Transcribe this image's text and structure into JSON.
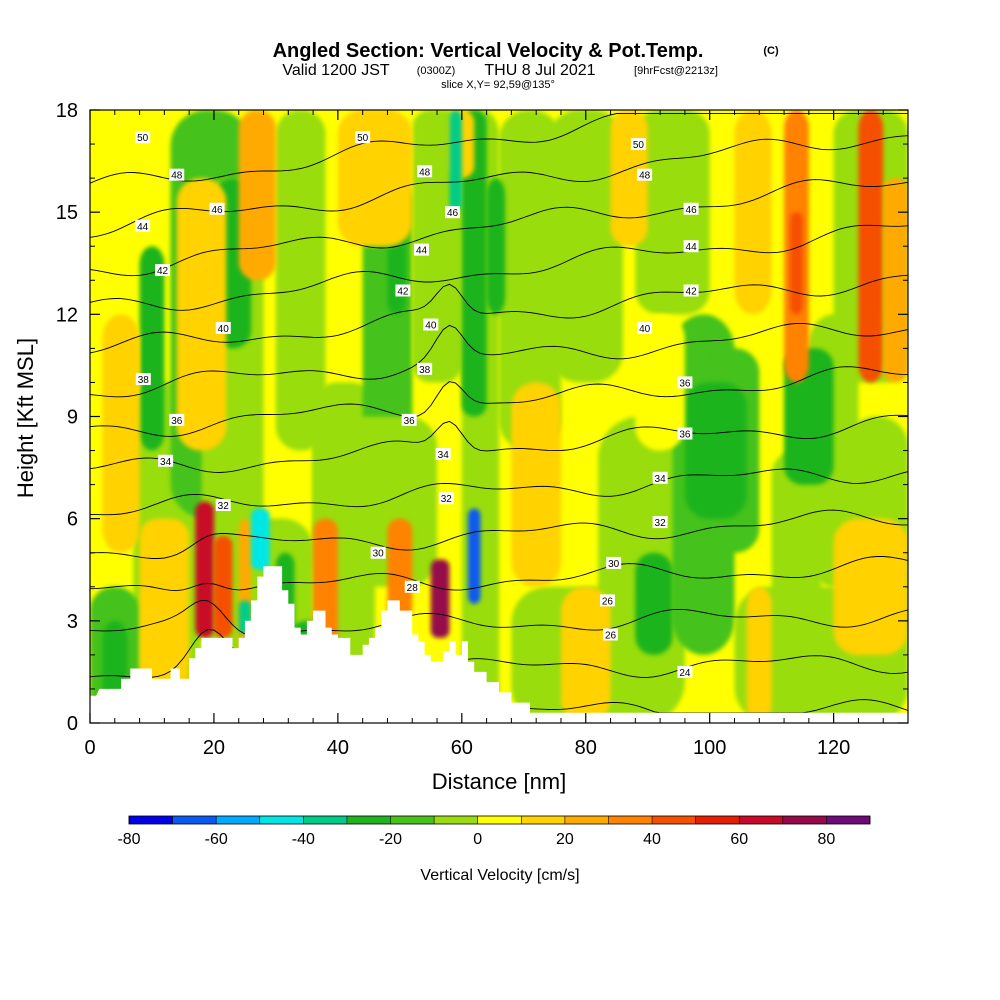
{
  "chart_data": {
    "type": "heatmap",
    "title": "Angled Section: Vertical Velocity & Pot.Temp.",
    "title_unit": "(C)",
    "subtitle_main": "Valid 1200 JST",
    "subtitle_utc": "(0300Z)",
    "subtitle_date": "THU 8 Jul 2021",
    "subtitle_fcst": "[9hrFcst@2213z]",
    "slice_label": "slice X,Y= 92,59@135°",
    "xlabel": "Distance [nm]",
    "ylabel": "Height [Kft MSL]",
    "xlim": [
      0,
      132
    ],
    "ylim": [
      0,
      18
    ],
    "x_ticks": [
      0,
      20,
      40,
      60,
      80,
      100,
      120
    ],
    "y_ticks": [
      0,
      3,
      6,
      9,
      12,
      15,
      18
    ],
    "x_tick_labels": [
      "0",
      "20",
      "40",
      "60",
      "80",
      "100",
      "120"
    ],
    "y_tick_labels": [
      "0",
      "3",
      "6",
      "9",
      "12",
      "15",
      "18"
    ],
    "colorbar": {
      "label": "Vertical Velocity [cm/s]",
      "range": [
        -80,
        90
      ],
      "bin_width": 10,
      "tick_values": [
        -80,
        -60,
        -40,
        -20,
        0,
        20,
        40,
        60,
        80
      ],
      "tick_labels": [
        "-80",
        "-60",
        "-40",
        "-20",
        "0",
        "20",
        "40",
        "60",
        "80"
      ],
      "colors": [
        "#0000e6",
        "#0a5af0",
        "#00aaff",
        "#00e6e6",
        "#00cc88",
        "#1fb41f",
        "#45c21a",
        "#99dd11",
        "#ffff00",
        "#ffd200",
        "#ffaa00",
        "#ff8200",
        "#f55000",
        "#e61e00",
        "#c80a28",
        "#960a4b",
        "#6e0a78"
      ]
    },
    "contours": {
      "field": "Potential Temperature (C)",
      "levels": [
        24,
        26,
        28,
        30,
        32,
        34,
        36,
        38,
        40,
        42,
        44,
        46,
        48,
        50
      ],
      "labels": [
        {
          "text": "50",
          "x": 8.5,
          "y": 17.2
        },
        {
          "text": "48",
          "x": 14,
          "y": 16.1
        },
        {
          "text": "46",
          "x": 20.5,
          "y": 15.1
        },
        {
          "text": "44",
          "x": 8.5,
          "y": 14.6
        },
        {
          "text": "42",
          "x": 11.7,
          "y": 13.3
        },
        {
          "text": "40",
          "x": 21.5,
          "y": 11.6
        },
        {
          "text": "38",
          "x": 8.6,
          "y": 10.1
        },
        {
          "text": "36",
          "x": 14,
          "y": 8.9
        },
        {
          "text": "34",
          "x": 12.2,
          "y": 7.7
        },
        {
          "text": "32",
          "x": 21.5,
          "y": 6.4
        },
        {
          "text": "50",
          "x": 44,
          "y": 17.2
        },
        {
          "text": "48",
          "x": 54,
          "y": 16.2
        },
        {
          "text": "46",
          "x": 58.5,
          "y": 15
        },
        {
          "text": "44",
          "x": 53.5,
          "y": 13.9
        },
        {
          "text": "42",
          "x": 50.5,
          "y": 12.7
        },
        {
          "text": "40",
          "x": 55,
          "y": 11.7
        },
        {
          "text": "38",
          "x": 54,
          "y": 10.4
        },
        {
          "text": "36",
          "x": 51.5,
          "y": 8.9
        },
        {
          "text": "34",
          "x": 57,
          "y": 7.9
        },
        {
          "text": "32",
          "x": 57.5,
          "y": 6.6
        },
        {
          "text": "30",
          "x": 46.5,
          "y": 5
        },
        {
          "text": "28",
          "x": 52,
          "y": 4
        },
        {
          "text": "50",
          "x": 88.5,
          "y": 17
        },
        {
          "text": "48",
          "x": 89.5,
          "y": 16.1
        },
        {
          "text": "46",
          "x": 97,
          "y": 15.1
        },
        {
          "text": "44",
          "x": 97,
          "y": 14
        },
        {
          "text": "42",
          "x": 97,
          "y": 12.7
        },
        {
          "text": "40",
          "x": 89.5,
          "y": 11.6
        },
        {
          "text": "36",
          "x": 96,
          "y": 10
        },
        {
          "text": "36",
          "x": 96,
          "y": 8.5
        },
        {
          "text": "34",
          "x": 92,
          "y": 7.2
        },
        {
          "text": "32",
          "x": 92,
          "y": 5.9
        },
        {
          "text": "30",
          "x": 84.5,
          "y": 4.7
        },
        {
          "text": "26",
          "x": 83.5,
          "y": 3.6
        },
        {
          "text": "26",
          "x": 84,
          "y": 2.6
        },
        {
          "text": "24",
          "x": 96,
          "y": 1.5
        }
      ]
    },
    "terrain_profile": [
      [
        0,
        0.8
      ],
      [
        1,
        0.8
      ],
      [
        1.5,
        1.0
      ],
      [
        5,
        1.0
      ],
      [
        5,
        1.3
      ],
      [
        6.5,
        1.3
      ],
      [
        6.5,
        1.6
      ],
      [
        10,
        1.6
      ],
      [
        10,
        1.3
      ],
      [
        13,
        1.3
      ],
      [
        13,
        1.6
      ],
      [
        14.5,
        1.6
      ],
      [
        14.5,
        1.3
      ],
      [
        16,
        1.3
      ],
      [
        16,
        1.9
      ],
      [
        17,
        1.9
      ],
      [
        17,
        2.2
      ],
      [
        18,
        2.2
      ],
      [
        18,
        2.5
      ],
      [
        23,
        2.5
      ],
      [
        23,
        2.2
      ],
      [
        24,
        2.2
      ],
      [
        24,
        2.5
      ],
      [
        25,
        2.5
      ],
      [
        25,
        3.0
      ],
      [
        26,
        3.0
      ],
      [
        26,
        3.6
      ],
      [
        27,
        3.6
      ],
      [
        27,
        4.3
      ],
      [
        28,
        4.3
      ],
      [
        28,
        4.6
      ],
      [
        31,
        4.6
      ],
      [
        31,
        3.9
      ],
      [
        32,
        3.9
      ],
      [
        32,
        3.5
      ],
      [
        33,
        3.5
      ],
      [
        33,
        2.8
      ],
      [
        34,
        2.8
      ],
      [
        34,
        2.6
      ],
      [
        35,
        2.6
      ],
      [
        35,
        3.0
      ],
      [
        36,
        3.0
      ],
      [
        36,
        3.3
      ],
      [
        38,
        3.3
      ],
      [
        38,
        2.8
      ],
      [
        39,
        2.8
      ],
      [
        39,
        2.6
      ],
      [
        40,
        2.6
      ],
      [
        40,
        2.5
      ],
      [
        42,
        2.5
      ],
      [
        42,
        2.0
      ],
      [
        44,
        2.0
      ],
      [
        44,
        2.3
      ],
      [
        45,
        2.3
      ],
      [
        45,
        2.5
      ],
      [
        46,
        2.5
      ],
      [
        46,
        2.8
      ],
      [
        47,
        2.8
      ],
      [
        47,
        3.3
      ],
      [
        48,
        3.3
      ],
      [
        48,
        3.6
      ],
      [
        50,
        3.6
      ],
      [
        50,
        3.3
      ],
      [
        52,
        3.3
      ],
      [
        52,
        2.6
      ],
      [
        53,
        2.6
      ],
      [
        53,
        2.4
      ],
      [
        54,
        2.4
      ],
      [
        54,
        2.0
      ],
      [
        55,
        2.0
      ],
      [
        55,
        1.8
      ],
      [
        57,
        1.8
      ],
      [
        57,
        2.1
      ],
      [
        58,
        2.1
      ],
      [
        58,
        2.4
      ],
      [
        59,
        2.4
      ],
      [
        59,
        2.0
      ],
      [
        60,
        2.0
      ],
      [
        60,
        2.4
      ],
      [
        61,
        2.4
      ],
      [
        61,
        1.8
      ],
      [
        62,
        1.8
      ],
      [
        62,
        1.5
      ],
      [
        64,
        1.5
      ],
      [
        64,
        1.2
      ],
      [
        66,
        1.2
      ],
      [
        66,
        0.9
      ],
      [
        68,
        0.9
      ],
      [
        68,
        0.6
      ],
      [
        71,
        0.6
      ],
      [
        71,
        0.3
      ],
      [
        132,
        0.3
      ]
    ]
  }
}
